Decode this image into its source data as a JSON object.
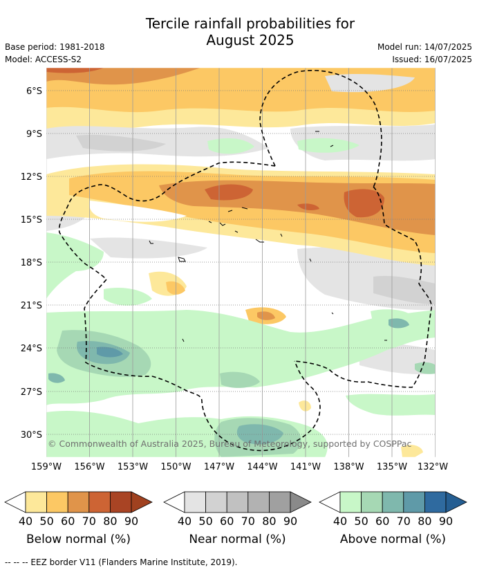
{
  "header": {
    "title_line1": "Tercile rainfall probabilities for",
    "title_line2": "August 2025",
    "base_period": "Base period: 1981-2018",
    "model": "Model: ACCESS-S2",
    "model_run": "Model run: 14/07/2025",
    "issued": "Issued: 16/07/2025"
  },
  "map": {
    "lat_labels": [
      "6°S",
      "9°S",
      "12°S",
      "15°S",
      "18°S",
      "21°S",
      "24°S",
      "27°S",
      "30°S"
    ],
    "lon_labels": [
      "159°W",
      "156°W",
      "153°W",
      "150°W",
      "147°W",
      "144°W",
      "141°W",
      "138°W",
      "135°W",
      "132°W"
    ],
    "copyright": "© Commonwealth of Australia 2025, Bureau of Meteorology, supported by COSPPac"
  },
  "colorbars": [
    {
      "title": "Below normal (%)",
      "ticks": [
        "40",
        "50",
        "60",
        "70",
        "80",
        "90"
      ],
      "colors": [
        "#fde89a",
        "#fcc864",
        "#e0944a",
        "#cd6434",
        "#a94424",
        "#a0411f"
      ]
    },
    {
      "title": "Near normal (%)",
      "ticks": [
        "40",
        "50",
        "60",
        "70",
        "80",
        "90"
      ],
      "colors": [
        "#e4e4e4",
        "#d2d2d2",
        "#c1c1c1",
        "#b2b2b2",
        "#a0a0a0",
        "#8a8a8a"
      ]
    },
    {
      "title": "Above normal (%)",
      "ticks": [
        "40",
        "50",
        "60",
        "70",
        "80",
        "90"
      ],
      "colors": [
        "#c8f7c8",
        "#a6d8b4",
        "#7fb8ad",
        "#5f9aa8",
        "#2f6a9f",
        "#255e92"
      ]
    }
  ],
  "footnote": "--  --  -- EEZ border V11 (Flanders Marine Institute, 2019)."
}
